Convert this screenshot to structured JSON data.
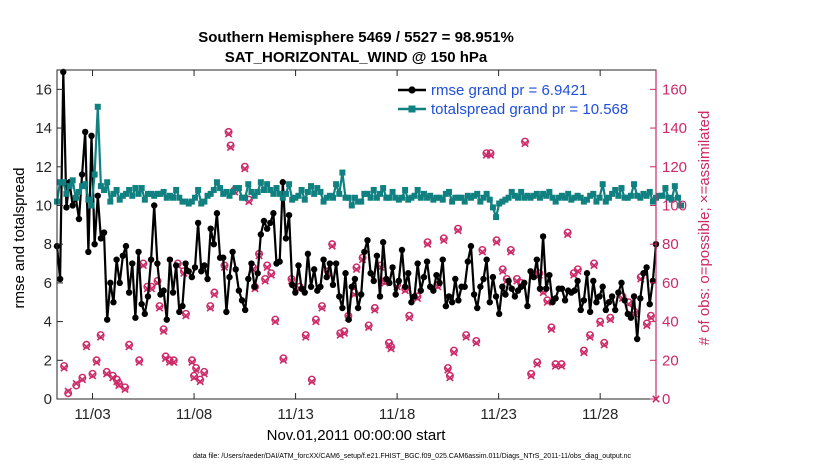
{
  "chart_data": {
    "type": "line",
    "title_line1": "Southern Hemisphere 5469 / 5527 = 98.951%",
    "title_line2": "SAT_HORIZONTAL_WIND @ 150 hPa",
    "xlabel": "Nov.01,2011 00:00:00 start",
    "ylabel_left": "rmse and totalspread",
    "ylabel_right": "# of obs: o=possible; ×=assimilated",
    "x_tick_labels": [
      "11/03",
      "11/08",
      "11/13",
      "11/18",
      "11/23",
      "11/28"
    ],
    "x_tick_days": [
      3,
      8,
      13,
      18,
      23,
      28
    ],
    "xlim": [
      1.25,
      30.75
    ],
    "ylim_left": [
      0,
      17
    ],
    "yticks_left": [
      0,
      2,
      4,
      6,
      8,
      10,
      12,
      14,
      16
    ],
    "ylim_right": [
      0,
      170
    ],
    "yticks_right": [
      0,
      20,
      40,
      60,
      80,
      100,
      120,
      140,
      160
    ],
    "footnote": "data file: /Users/raeder/DAI/ATM_forcXX/CAM6_setup/f.e21.FHIST_BGC.f09_025.CAM6assim.011/Diags_NTrS_2011-11/obs_diag_output.nc",
    "series": [
      {
        "name": "rmse grand pr = 6.9421",
        "color": "#000000",
        "axis": "left",
        "values": [
          7.9,
          6.2,
          16.9,
          9.9,
          11.2,
          10.0,
          10.4,
          9.3,
          11.6,
          13.8,
          7.6,
          13.6,
          8.0,
          10.5,
          8.3,
          8.6,
          4.1,
          6.0,
          5.0,
          7.2,
          6.0,
          7.4,
          7.9,
          5.5,
          7.0,
          4.2,
          7.6,
          4.9,
          4.4,
          5.3,
          7.2,
          10.0,
          7.0,
          5.4,
          5.6,
          4.1,
          7.2,
          5.5,
          6.9,
          4.5,
          4.8,
          7.0,
          6.6,
          6.3,
          6.8,
          9.1,
          6.6,
          6.9,
          6.2,
          8.8,
          8.0,
          9.6,
          7.3,
          7.3,
          4.5,
          6.3,
          7.6,
          6.7,
          5.6,
          5.1,
          4.6,
          6.2,
          7.0,
          5.8,
          6.5,
          8.5,
          9.2,
          8.8,
          9.1,
          9.6,
          7.0,
          7.1,
          11.2,
          8.3,
          9.5,
          5.9,
          5.5,
          6.9,
          5.7,
          5.5,
          7.5,
          5.8,
          6.7,
          5.6,
          5.8,
          7.2,
          6.3,
          7.0,
          5.9,
          7.0,
          5.3,
          4.7,
          6.5,
          4.1,
          5.8,
          6.2,
          4.7,
          5.4,
          7.6,
          8.2,
          6.5,
          6.1,
          7.4,
          5.3,
          8.1,
          6.2,
          6.0,
          6.8,
          5.4,
          6.1,
          7.7,
          5.8,
          6.5,
          5.0,
          5.3,
          7.0,
          5.6,
          6.3,
          7.1,
          5.8,
          5.6,
          6.4,
          6.0,
          7.2,
          4.8,
          5.3,
          5.0,
          6.2,
          5.1,
          5.8,
          5.8,
          7.1,
          7.9,
          5.4,
          4.7,
          5.8,
          6.2,
          7.2,
          5.0,
          6.3,
          5.3,
          4.4,
          5.8,
          5.4,
          6.1,
          5.7,
          5.3,
          5.6,
          5.8,
          6.0,
          4.8,
          6.6,
          6.3,
          7.2,
          5.7,
          8.4,
          5.7,
          6.4,
          5.0,
          5.2,
          5.7,
          5.7,
          5.1,
          5.6,
          5.5,
          5.6,
          6.1,
          4.6,
          5.1,
          6.5,
          4.5,
          6.1,
          5.0,
          5.3,
          5.8,
          4.6,
          5.0,
          5.3,
          4.6,
          5.5,
          6.0,
          5.1,
          4.4,
          4.2,
          5.3,
          3.1,
          5.2,
          6.5,
          6.8,
          4.9,
          6.1,
          8.0
        ]
      },
      {
        "name": "totalspread grand pr = 10.568",
        "color": "#108080",
        "axis": "left",
        "values": [
          10.2,
          11.2,
          11.2,
          10.6,
          11.0,
          11.3,
          10.4,
          10.7,
          11.0,
          11.1,
          10.3,
          10.0,
          11.6,
          15.1,
          11.0,
          10.8,
          11.2,
          10.2,
          10.6,
          10.8,
          10.3,
          10.5,
          10.6,
          10.8,
          10.5,
          10.9,
          10.6,
          10.9,
          10.3,
          10.6,
          10.6,
          10.5,
          10.6,
          10.6,
          10.7,
          10.4,
          10.5,
          10.4,
          10.8,
          10.4,
          10.2,
          10.2,
          10.1,
          10.2,
          10.4,
          10.8,
          10.1,
          10.2,
          10.5,
          10.6,
          10.8,
          11.2,
          10.9,
          10.6,
          10.7,
          10.5,
          10.7,
          10.9,
          10.9,
          10.4,
          10.4,
          11.1,
          10.7,
          10.5,
          10.7,
          11.2,
          10.8,
          11.1,
          10.8,
          10.6,
          10.9,
          10.6,
          10.4,
          10.6,
          11.1,
          10.3,
          10.4,
          10.5,
          10.8,
          10.3,
          10.7,
          11.0,
          10.6,
          10.9,
          10.7,
          10.2,
          10.4,
          10.5,
          10.4,
          11.1,
          10.6,
          11.7,
          10.4,
          10.4,
          10.0,
          10.4,
          10.2,
          10.2,
          10.6,
          10.6,
          10.4,
          10.8,
          10.4,
          10.6,
          10.9,
          10.4,
          10.4,
          10.7,
          10.4,
          10.3,
          10.4,
          10.8,
          10.3,
          10.4,
          10.5,
          10.8,
          10.4,
          10.6,
          10.4,
          10.5,
          10.3,
          10.4,
          10.4,
          10.3,
          10.6,
          10.7,
          10.2,
          10.4,
          10.4,
          10.4,
          10.2,
          10.5,
          10.4,
          10.5,
          10.6,
          10.2,
          10.4,
          10.6,
          10.3,
          9.9,
          9.4,
          10.1,
          10.2,
          10.3,
          10.4,
          10.7,
          10.5,
          10.4,
          10.7,
          10.4,
          10.5,
          10.4,
          10.5,
          10.6,
          10.4,
          10.6,
          10.5,
          10.7,
          10.4,
          10.2,
          10.4,
          10.5,
          10.4,
          10.6,
          10.3,
          10.4,
          10.5,
          10.4,
          10.2,
          10.3,
          10.5,
          10.6,
          10.2,
          10.4,
          11.1,
          10.2,
          10.4,
          10.6,
          10.8,
          10.5,
          10.9,
          10.4,
          10.4,
          10.5,
          11.1,
          10.5,
          10.4,
          10.6,
          10.5,
          10.7,
          10.2,
          10.4,
          10.5,
          10.5,
          10.9,
          10.4,
          10.3,
          11.0,
          10.4,
          10.0
        ]
      }
    ],
    "obs_possible": {
      "name": "# of obs possible (o)",
      "color": "#cc2a68",
      "axis": "right",
      "points": [
        [
          1.6,
          17
        ],
        [
          1.8,
          3
        ],
        [
          2.2,
          7
        ],
        [
          2.5,
          11
        ],
        [
          2.7,
          28
        ],
        [
          3.0,
          13
        ],
        [
          3.2,
          20
        ],
        [
          3.4,
          33
        ],
        [
          3.7,
          14
        ],
        [
          4.0,
          12
        ],
        [
          4.2,
          10
        ],
        [
          4.3,
          8
        ],
        [
          4.6,
          6
        ],
        [
          4.8,
          28
        ],
        [
          5.3,
          20
        ],
        [
          5.5,
          70
        ],
        [
          5.7,
          58
        ],
        [
          5.9,
          58
        ],
        [
          6.2,
          61
        ],
        [
          6.3,
          48
        ],
        [
          6.5,
          36
        ],
        [
          6.6,
          22
        ],
        [
          6.8,
          20
        ],
        [
          7.0,
          20
        ],
        [
          7.2,
          70
        ],
        [
          7.5,
          66
        ],
        [
          7.6,
          44
        ],
        [
          7.9,
          20
        ],
        [
          8.0,
          12
        ],
        [
          8.1,
          16
        ],
        [
          8.3,
          10
        ],
        [
          8.5,
          14
        ],
        [
          8.8,
          48
        ],
        [
          9.0,
          55
        ],
        [
          9.5,
          69
        ],
        [
          9.7,
          138
        ],
        [
          9.8,
          131
        ],
        [
          10.0,
          108
        ],
        [
          10.5,
          120
        ],
        [
          10.7,
          103
        ],
        [
          10.9,
          68
        ],
        [
          11.0,
          58
        ],
        [
          11.2,
          75
        ],
        [
          11.5,
          62
        ],
        [
          11.6,
          69
        ],
        [
          11.8,
          65
        ],
        [
          12.0,
          41
        ],
        [
          12.4,
          21
        ],
        [
          12.8,
          62
        ],
        [
          13.2,
          58
        ],
        [
          13.5,
          33
        ],
        [
          13.8,
          10
        ],
        [
          14.0,
          41
        ],
        [
          14.3,
          48
        ],
        [
          14.6,
          66
        ],
        [
          14.8,
          80
        ],
        [
          15.2,
          34
        ],
        [
          15.4,
          35
        ],
        [
          15.6,
          43
        ],
        [
          15.9,
          55
        ],
        [
          16.0,
          68
        ],
        [
          16.3,
          73
        ],
        [
          16.6,
          38
        ],
        [
          16.9,
          47
        ],
        [
          17.2,
          69
        ],
        [
          17.4,
          61
        ],
        [
          17.6,
          29
        ],
        [
          17.7,
          27
        ],
        [
          18.0,
          59
        ],
        [
          18.4,
          57
        ],
        [
          18.6,
          43
        ],
        [
          19.0,
          53
        ],
        [
          19.5,
          81
        ],
        [
          20.0,
          59
        ],
        [
          20.3,
          83
        ],
        [
          20.5,
          16
        ],
        [
          20.6,
          12
        ],
        [
          20.8,
          25
        ],
        [
          21.0,
          88
        ],
        [
          21.4,
          33
        ],
        [
          21.9,
          30
        ],
        [
          22.2,
          77
        ],
        [
          22.4,
          127
        ],
        [
          22.6,
          127
        ],
        [
          22.9,
          82
        ],
        [
          23.2,
          67
        ],
        [
          23.4,
          62
        ],
        [
          23.6,
          77
        ],
        [
          23.9,
          62
        ],
        [
          24.1,
          60
        ],
        [
          24.3,
          133
        ],
        [
          24.6,
          13
        ],
        [
          24.9,
          19
        ],
        [
          25.0,
          65
        ],
        [
          25.2,
          56
        ],
        [
          25.4,
          51
        ],
        [
          25.6,
          37
        ],
        [
          25.8,
          18
        ],
        [
          26.1,
          18
        ],
        [
          26.4,
          86
        ],
        [
          26.7,
          65
        ],
        [
          26.9,
          67
        ],
        [
          27.2,
          25
        ],
        [
          27.5,
          33
        ],
        [
          27.7,
          70
        ],
        [
          28.0,
          40
        ],
        [
          28.2,
          29
        ],
        [
          28.5,
          42
        ],
        [
          29.1,
          53
        ],
        [
          29.4,
          50
        ],
        [
          29.7,
          45
        ],
        [
          30.0,
          63
        ],
        [
          30.3,
          39
        ],
        [
          30.5,
          43
        ]
      ]
    },
    "obs_assimilated": {
      "name": "# of obs assimilated (×)",
      "color": "#cc2a68",
      "axis": "right",
      "points": [
        [
          1.6,
          16
        ],
        [
          1.8,
          4
        ],
        [
          2.2,
          8
        ],
        [
          2.5,
          10
        ],
        [
          2.7,
          27
        ],
        [
          3.0,
          12
        ],
        [
          3.2,
          19
        ],
        [
          3.4,
          32
        ],
        [
          3.7,
          13
        ],
        [
          4.0,
          11
        ],
        [
          4.2,
          9
        ],
        [
          4.3,
          7
        ],
        [
          4.6,
          5
        ],
        [
          4.8,
          27
        ],
        [
          5.3,
          19
        ],
        [
          5.5,
          69
        ],
        [
          5.7,
          57
        ],
        [
          5.9,
          57
        ],
        [
          6.2,
          60
        ],
        [
          6.3,
          47
        ],
        [
          6.5,
          35
        ],
        [
          6.6,
          21
        ],
        [
          6.8,
          19
        ],
        [
          7.0,
          19
        ],
        [
          7.2,
          69
        ],
        [
          7.5,
          65
        ],
        [
          7.6,
          43
        ],
        [
          7.9,
          19
        ],
        [
          8.0,
          11
        ],
        [
          8.1,
          15
        ],
        [
          8.3,
          9
        ],
        [
          8.5,
          13
        ],
        [
          8.8,
          47
        ],
        [
          9.0,
          54
        ],
        [
          9.5,
          68
        ],
        [
          9.7,
          137
        ],
        [
          9.8,
          130
        ],
        [
          10.0,
          107
        ],
        [
          10.5,
          119
        ],
        [
          10.7,
          102
        ],
        [
          10.9,
          67
        ],
        [
          11.0,
          57
        ],
        [
          11.2,
          74
        ],
        [
          11.5,
          61
        ],
        [
          11.6,
          68
        ],
        [
          11.8,
          64
        ],
        [
          12.0,
          40
        ],
        [
          12.4,
          20
        ],
        [
          12.8,
          61
        ],
        [
          13.2,
          57
        ],
        [
          13.5,
          32
        ],
        [
          13.8,
          9
        ],
        [
          14.0,
          40
        ],
        [
          14.3,
          47
        ],
        [
          14.6,
          65
        ],
        [
          14.8,
          79
        ],
        [
          15.2,
          33
        ],
        [
          15.4,
          34
        ],
        [
          15.6,
          42
        ],
        [
          15.9,
          54
        ],
        [
          16.0,
          67
        ],
        [
          16.3,
          72
        ],
        [
          16.6,
          37
        ],
        [
          16.9,
          46
        ],
        [
          17.2,
          68
        ],
        [
          17.4,
          60
        ],
        [
          17.6,
          28
        ],
        [
          17.7,
          26
        ],
        [
          18.0,
          58
        ],
        [
          18.4,
          56
        ],
        [
          18.6,
          42
        ],
        [
          19.0,
          52
        ],
        [
          19.5,
          80
        ],
        [
          20.0,
          58
        ],
        [
          20.3,
          82
        ],
        [
          20.5,
          15
        ],
        [
          20.6,
          11
        ],
        [
          20.8,
          24
        ],
        [
          21.0,
          87
        ],
        [
          21.4,
          32
        ],
        [
          21.9,
          29
        ],
        [
          22.2,
          76
        ],
        [
          22.4,
          126
        ],
        [
          22.6,
          126
        ],
        [
          22.9,
          81
        ],
        [
          23.2,
          66
        ],
        [
          23.4,
          61
        ],
        [
          23.6,
          76
        ],
        [
          23.9,
          61
        ],
        [
          24.1,
          59
        ],
        [
          24.3,
          132
        ],
        [
          24.6,
          12
        ],
        [
          24.9,
          18
        ],
        [
          25.0,
          64
        ],
        [
          25.2,
          55
        ],
        [
          25.4,
          50
        ],
        [
          25.6,
          36
        ],
        [
          25.8,
          17
        ],
        [
          26.1,
          17
        ],
        [
          26.4,
          85
        ],
        [
          26.7,
          64
        ],
        [
          26.9,
          66
        ],
        [
          27.2,
          24
        ],
        [
          27.5,
          32
        ],
        [
          27.7,
          69
        ],
        [
          28.0,
          39
        ],
        [
          28.2,
          28
        ],
        [
          28.5,
          41
        ],
        [
          29.1,
          52
        ],
        [
          29.4,
          49
        ],
        [
          29.7,
          44
        ],
        [
          30.0,
          62
        ],
        [
          30.3,
          38
        ],
        [
          30.5,
          42
        ],
        [
          30.75,
          0
        ]
      ]
    }
  }
}
